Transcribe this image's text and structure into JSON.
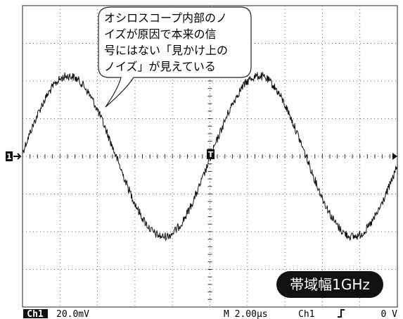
{
  "callout": {
    "lines": [
      "オシロスコープ内部のノ",
      "イズが原因で本来の信",
      "号にはない「見かけ上の",
      "ノイズ」が見えている"
    ]
  },
  "badge": "帯域幅1GHz",
  "markers": {
    "channel": "1",
    "trigger": "T"
  },
  "status": {
    "channel": "Ch1",
    "scale": "20.0mV",
    "timebase": "M 2.00µs",
    "trigger_source": "Ch1",
    "trigger_level": "0 V"
  }
}
